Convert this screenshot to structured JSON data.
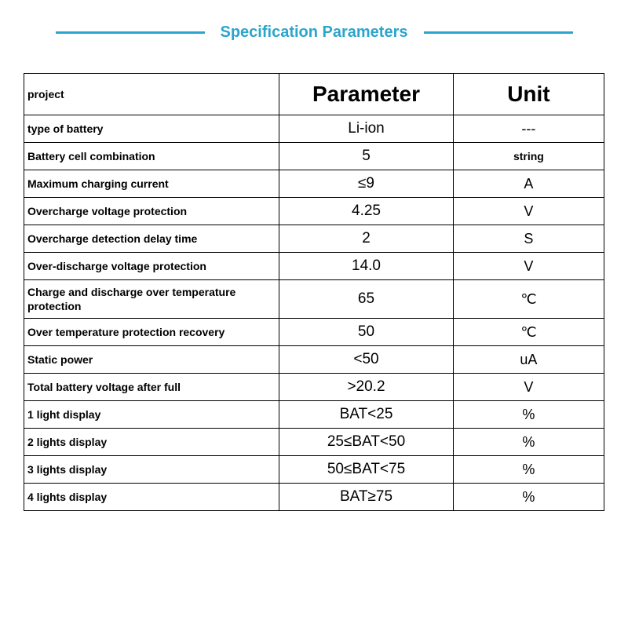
{
  "title": "Specification Parameters",
  "title_color": "#2ba5cc",
  "title_fontsize": 20,
  "line_color": "#2ba5cc",
  "table": {
    "border_color": "#000000",
    "columns": [
      {
        "label": "project",
        "header_fontsize": 14
      },
      {
        "label": "Parameter",
        "header_fontsize": 28
      },
      {
        "label": "Unit",
        "header_fontsize": 28
      }
    ],
    "rows": [
      {
        "project": "type of battery",
        "param": "Li-ion",
        "unit": "---"
      },
      {
        "project": "Battery cell combination",
        "param": "5",
        "unit": "string",
        "unit_small": true
      },
      {
        "project": "Maximum charging current",
        "param": "≤9",
        "unit": "A"
      },
      {
        "project": "Overcharge voltage protection",
        "param": "4.25",
        "unit": "V"
      },
      {
        "project": "Overcharge detection delay time",
        "param": "2",
        "unit": "S"
      },
      {
        "project": "Over-discharge voltage protection",
        "param": "14.0",
        "unit": "V"
      },
      {
        "project": "Charge and discharge over temperature protection",
        "param": "65",
        "unit": "℃"
      },
      {
        "project": "Over temperature protection recovery",
        "param": "50",
        "unit": "℃"
      },
      {
        "project": "Static power",
        "param": "<50",
        "unit": "uA"
      },
      {
        "project": "Total battery voltage after full",
        "param": ">20.2",
        "unit": "V"
      },
      {
        "project": "1 light display",
        "param": "BAT<25",
        "unit": "%"
      },
      {
        "project": "2 lights display",
        "param": "25≤BAT<50",
        "unit": "%"
      },
      {
        "project": "3 lights display",
        "param": "50≤BAT<75",
        "unit": "%"
      },
      {
        "project": "4 lights display",
        "param": "BAT≥75",
        "unit": "%"
      }
    ]
  }
}
